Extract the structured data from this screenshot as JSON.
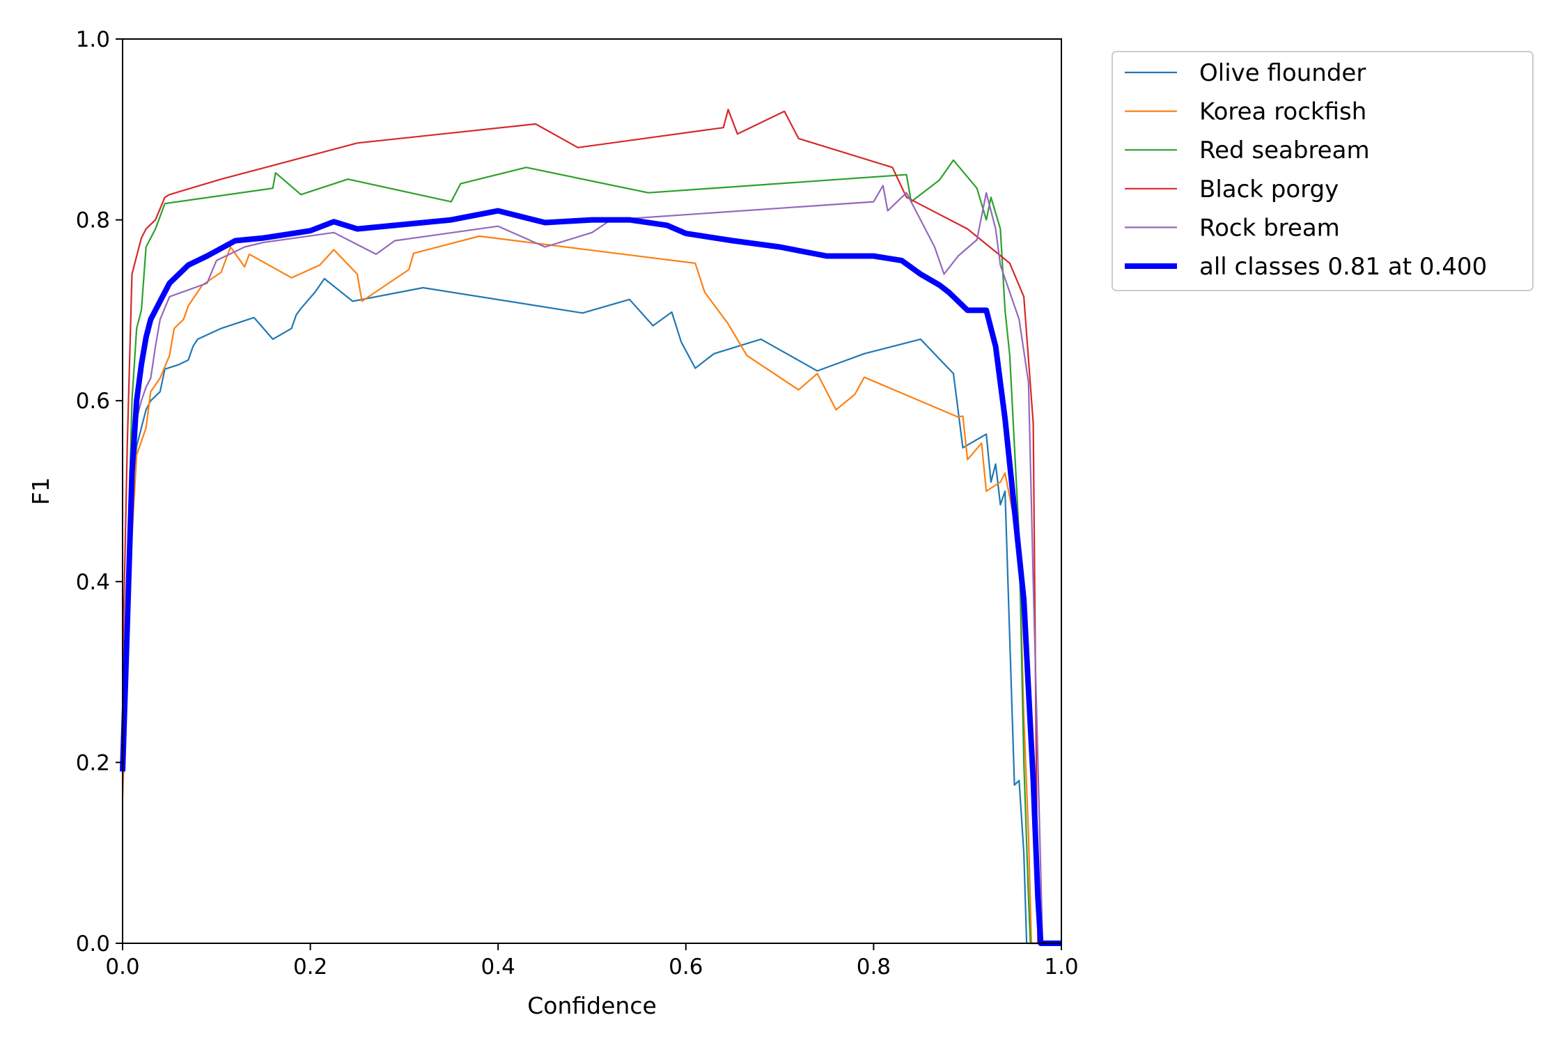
{
  "chart_data": {
    "type": "line",
    "title": "",
    "xlabel": "Confidence",
    "ylabel": "F1",
    "xlim": [
      0.0,
      1.0
    ],
    "ylim": [
      0.0,
      1.0
    ],
    "x_ticks": [
      "0.0",
      "0.2",
      "0.4",
      "0.6",
      "0.8",
      "1.0"
    ],
    "y_ticks": [
      "0.0",
      "0.2",
      "0.4",
      "0.6",
      "0.8",
      "1.0"
    ],
    "grid": false,
    "legend_position": "outside-top-right",
    "series": [
      {
        "name": "Olive flounder",
        "color": "#1f77b4",
        "points": [
          [
            0.0,
            0.2
          ],
          [
            0.005,
            0.38
          ],
          [
            0.01,
            0.5
          ],
          [
            0.015,
            0.55
          ],
          [
            0.02,
            0.57
          ],
          [
            0.025,
            0.59
          ],
          [
            0.03,
            0.6
          ],
          [
            0.04,
            0.61
          ],
          [
            0.045,
            0.635
          ],
          [
            0.06,
            0.64
          ],
          [
            0.07,
            0.645
          ],
          [
            0.075,
            0.66
          ],
          [
            0.08,
            0.668
          ],
          [
            0.105,
            0.68
          ],
          [
            0.14,
            0.692
          ],
          [
            0.16,
            0.668
          ],
          [
            0.18,
            0.68
          ],
          [
            0.185,
            0.695
          ],
          [
            0.19,
            0.702
          ],
          [
            0.205,
            0.72
          ],
          [
            0.215,
            0.735
          ],
          [
            0.245,
            0.71
          ],
          [
            0.32,
            0.725
          ],
          [
            0.49,
            0.697
          ],
          [
            0.54,
            0.712
          ],
          [
            0.565,
            0.683
          ],
          [
            0.585,
            0.698
          ],
          [
            0.595,
            0.665
          ],
          [
            0.61,
            0.636
          ],
          [
            0.63,
            0.652
          ],
          [
            0.68,
            0.668
          ],
          [
            0.74,
            0.633
          ],
          [
            0.79,
            0.652
          ],
          [
            0.85,
            0.668
          ],
          [
            0.885,
            0.63
          ],
          [
            0.895,
            0.548
          ],
          [
            0.92,
            0.563
          ],
          [
            0.925,
            0.51
          ],
          [
            0.93,
            0.53
          ],
          [
            0.935,
            0.485
          ],
          [
            0.94,
            0.5
          ],
          [
            0.95,
            0.175
          ],
          [
            0.955,
            0.18
          ],
          [
            0.96,
            0.1
          ],
          [
            0.963,
            0.0
          ],
          [
            1.0,
            0.0
          ]
        ]
      },
      {
        "name": "Korea rockfish",
        "color": "#ff7f0e",
        "points": [
          [
            0.0,
            0.16
          ],
          [
            0.005,
            0.3
          ],
          [
            0.01,
            0.45
          ],
          [
            0.015,
            0.54
          ],
          [
            0.025,
            0.57
          ],
          [
            0.03,
            0.61
          ],
          [
            0.04,
            0.625
          ],
          [
            0.05,
            0.65
          ],
          [
            0.055,
            0.68
          ],
          [
            0.065,
            0.69
          ],
          [
            0.07,
            0.705
          ],
          [
            0.085,
            0.728
          ],
          [
            0.105,
            0.742
          ],
          [
            0.115,
            0.77
          ],
          [
            0.13,
            0.748
          ],
          [
            0.135,
            0.762
          ],
          [
            0.18,
            0.736
          ],
          [
            0.21,
            0.75
          ],
          [
            0.225,
            0.767
          ],
          [
            0.25,
            0.74
          ],
          [
            0.255,
            0.71
          ],
          [
            0.305,
            0.745
          ],
          [
            0.31,
            0.763
          ],
          [
            0.38,
            0.782
          ],
          [
            0.61,
            0.752
          ],
          [
            0.62,
            0.72
          ],
          [
            0.645,
            0.685
          ],
          [
            0.665,
            0.65
          ],
          [
            0.72,
            0.612
          ],
          [
            0.74,
            0.63
          ],
          [
            0.76,
            0.59
          ],
          [
            0.78,
            0.607
          ],
          [
            0.79,
            0.626
          ],
          [
            0.89,
            0.582
          ],
          [
            0.895,
            0.583
          ],
          [
            0.9,
            0.535
          ],
          [
            0.915,
            0.553
          ],
          [
            0.92,
            0.5
          ],
          [
            0.935,
            0.51
          ],
          [
            0.94,
            0.52
          ],
          [
            0.955,
            0.44
          ],
          [
            0.96,
            0.25
          ],
          [
            0.965,
            0.12
          ],
          [
            0.968,
            0.0
          ],
          [
            1.0,
            0.0
          ]
        ]
      },
      {
        "name": "Red seabream",
        "color": "#2ca02c",
        "points": [
          [
            0.0,
            0.2
          ],
          [
            0.005,
            0.4
          ],
          [
            0.01,
            0.6
          ],
          [
            0.015,
            0.68
          ],
          [
            0.02,
            0.7
          ],
          [
            0.025,
            0.77
          ],
          [
            0.035,
            0.79
          ],
          [
            0.045,
            0.818
          ],
          [
            0.16,
            0.835
          ],
          [
            0.163,
            0.852
          ],
          [
            0.19,
            0.828
          ],
          [
            0.24,
            0.845
          ],
          [
            0.35,
            0.82
          ],
          [
            0.36,
            0.84
          ],
          [
            0.43,
            0.858
          ],
          [
            0.56,
            0.83
          ],
          [
            0.835,
            0.85
          ],
          [
            0.84,
            0.82
          ],
          [
            0.87,
            0.844
          ],
          [
            0.885,
            0.866
          ],
          [
            0.91,
            0.835
          ],
          [
            0.92,
            0.8
          ],
          [
            0.925,
            0.825
          ],
          [
            0.935,
            0.79
          ],
          [
            0.94,
            0.7
          ],
          [
            0.945,
            0.65
          ],
          [
            0.955,
            0.45
          ],
          [
            0.96,
            0.2
          ],
          [
            0.965,
            0.05
          ],
          [
            0.967,
            0.0
          ],
          [
            1.0,
            0.0
          ]
        ]
      },
      {
        "name": "Black porgy",
        "color": "#d62728",
        "points": [
          [
            0.0,
            0.3
          ],
          [
            0.005,
            0.55
          ],
          [
            0.01,
            0.74
          ],
          [
            0.015,
            0.76
          ],
          [
            0.02,
            0.78
          ],
          [
            0.025,
            0.79
          ],
          [
            0.035,
            0.8
          ],
          [
            0.045,
            0.825
          ],
          [
            0.05,
            0.828
          ],
          [
            0.105,
            0.845
          ],
          [
            0.25,
            0.885
          ],
          [
            0.44,
            0.906
          ],
          [
            0.485,
            0.88
          ],
          [
            0.64,
            0.902
          ],
          [
            0.645,
            0.922
          ],
          [
            0.655,
            0.895
          ],
          [
            0.705,
            0.92
          ],
          [
            0.72,
            0.89
          ],
          [
            0.82,
            0.858
          ],
          [
            0.835,
            0.825
          ],
          [
            0.9,
            0.79
          ],
          [
            0.945,
            0.752
          ],
          [
            0.96,
            0.715
          ],
          [
            0.97,
            0.575
          ],
          [
            0.975,
            0.0
          ],
          [
            1.0,
            0.0
          ]
        ]
      },
      {
        "name": "Rock bream",
        "color": "#9467bd",
        "points": [
          [
            0.0,
            0.18
          ],
          [
            0.005,
            0.35
          ],
          [
            0.01,
            0.5
          ],
          [
            0.015,
            0.58
          ],
          [
            0.02,
            0.6
          ],
          [
            0.025,
            0.615
          ],
          [
            0.03,
            0.625
          ],
          [
            0.035,
            0.66
          ],
          [
            0.04,
            0.69
          ],
          [
            0.05,
            0.715
          ],
          [
            0.09,
            0.73
          ],
          [
            0.1,
            0.755
          ],
          [
            0.13,
            0.77
          ],
          [
            0.15,
            0.775
          ],
          [
            0.225,
            0.786
          ],
          [
            0.27,
            0.762
          ],
          [
            0.29,
            0.777
          ],
          [
            0.4,
            0.793
          ],
          [
            0.45,
            0.77
          ],
          [
            0.5,
            0.786
          ],
          [
            0.52,
            0.8
          ],
          [
            0.8,
            0.82
          ],
          [
            0.81,
            0.838
          ],
          [
            0.815,
            0.81
          ],
          [
            0.835,
            0.83
          ],
          [
            0.85,
            0.8
          ],
          [
            0.865,
            0.77
          ],
          [
            0.875,
            0.74
          ],
          [
            0.89,
            0.76
          ],
          [
            0.91,
            0.778
          ],
          [
            0.92,
            0.83
          ],
          [
            0.93,
            0.79
          ],
          [
            0.935,
            0.75
          ],
          [
            0.955,
            0.69
          ],
          [
            0.965,
            0.62
          ],
          [
            0.97,
            0.4
          ],
          [
            0.975,
            0.2
          ],
          [
            0.98,
            0.0
          ],
          [
            1.0,
            0.0
          ]
        ]
      },
      {
        "name": "all classes 0.81 at 0.400",
        "color": "#0000ff",
        "thick": true,
        "points": [
          [
            0.0,
            0.19
          ],
          [
            0.005,
            0.35
          ],
          [
            0.01,
            0.52
          ],
          [
            0.015,
            0.6
          ],
          [
            0.02,
            0.64
          ],
          [
            0.025,
            0.67
          ],
          [
            0.03,
            0.69
          ],
          [
            0.04,
            0.71
          ],
          [
            0.05,
            0.73
          ],
          [
            0.06,
            0.74
          ],
          [
            0.07,
            0.75
          ],
          [
            0.09,
            0.76
          ],
          [
            0.12,
            0.777
          ],
          [
            0.15,
            0.78
          ],
          [
            0.2,
            0.788
          ],
          [
            0.225,
            0.798
          ],
          [
            0.25,
            0.79
          ],
          [
            0.3,
            0.795
          ],
          [
            0.35,
            0.8
          ],
          [
            0.4,
            0.81
          ],
          [
            0.45,
            0.797
          ],
          [
            0.5,
            0.8
          ],
          [
            0.54,
            0.8
          ],
          [
            0.58,
            0.794
          ],
          [
            0.6,
            0.785
          ],
          [
            0.65,
            0.777
          ],
          [
            0.7,
            0.77
          ],
          [
            0.75,
            0.76
          ],
          [
            0.8,
            0.76
          ],
          [
            0.83,
            0.755
          ],
          [
            0.85,
            0.74
          ],
          [
            0.87,
            0.728
          ],
          [
            0.88,
            0.72
          ],
          [
            0.89,
            0.71
          ],
          [
            0.9,
            0.7
          ],
          [
            0.92,
            0.7
          ],
          [
            0.93,
            0.66
          ],
          [
            0.94,
            0.58
          ],
          [
            0.95,
            0.48
          ],
          [
            0.96,
            0.38
          ],
          [
            0.965,
            0.28
          ],
          [
            0.97,
            0.18
          ],
          [
            0.975,
            0.05
          ],
          [
            0.978,
            0.0
          ],
          [
            1.0,
            0.0
          ]
        ]
      }
    ]
  }
}
